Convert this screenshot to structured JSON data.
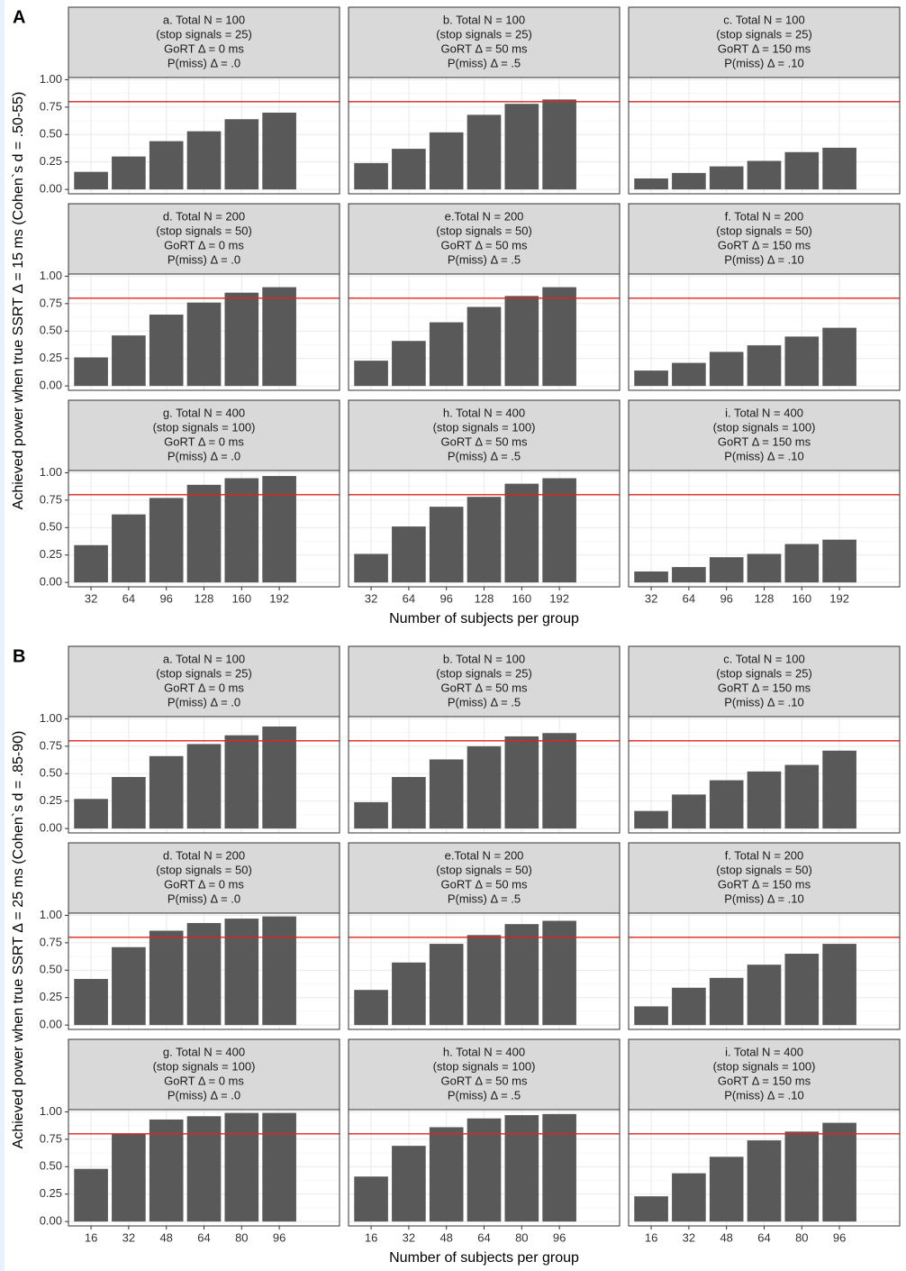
{
  "chart_data": [
    {
      "type": "bar",
      "panel_label": "A",
      "ylabel": "Achieved power when true SSRT  Δ = 15 ms (Cohen`s d = .50-55)",
      "xlabel": "Number of subjects per group",
      "categories": [
        "32",
        "64",
        "96",
        "128",
        "160",
        "192"
      ],
      "ylim": [
        -0.04,
        1.02
      ],
      "yticks": [
        {
          "value": 0,
          "label": "0.00"
        },
        {
          "value": 0.25,
          "label": "0.25"
        },
        {
          "value": 0.5,
          "label": "0.50"
        },
        {
          "value": 0.75,
          "label": "0.75"
        },
        {
          "value": 1,
          "label": "1.00"
        }
      ],
      "hline": 0.8,
      "hline_color": "#e0231c",
      "color": "#595959",
      "grid": true,
      "facets": [
        {
          "title": [
            "a. Total N = 100",
            "(stop signals = 25)",
            "GoRT Δ = 0 ms",
            "P(miss) Δ = .0"
          ],
          "values": [
            0.16,
            0.3,
            0.44,
            0.53,
            0.64,
            0.7
          ]
        },
        {
          "title": [
            "b. Total N = 100",
            "(stop signals = 25)",
            "GoRT Δ = 50 ms",
            "P(miss) Δ = .5"
          ],
          "values": [
            0.24,
            0.37,
            0.52,
            0.68,
            0.78,
            0.82
          ]
        },
        {
          "title": [
            "c. Total N = 100",
            "(stop signals = 25)",
            "GoRT Δ = 150 ms",
            "P(miss) Δ = .10"
          ],
          "values": [
            0.1,
            0.15,
            0.21,
            0.26,
            0.34,
            0.38
          ]
        },
        {
          "title": [
            "d. Total N = 200",
            "(stop signals = 50)",
            "GoRT Δ = 0 ms",
            "P(miss) Δ = .0"
          ],
          "values": [
            0.26,
            0.46,
            0.65,
            0.76,
            0.85,
            0.9
          ]
        },
        {
          "title": [
            "e.Total N = 200",
            "(stop signals = 50)",
            "GoRT Δ = 50 ms",
            "P(miss) Δ = .5"
          ],
          "values": [
            0.23,
            0.41,
            0.58,
            0.72,
            0.82,
            0.9
          ]
        },
        {
          "title": [
            "f. Total N = 200",
            "(stop signals = 50)",
            "GoRT Δ = 150 ms",
            "P(miss) Δ = .10"
          ],
          "values": [
            0.14,
            0.21,
            0.31,
            0.37,
            0.45,
            0.53
          ]
        },
        {
          "title": [
            "g. Total N = 400",
            "(stop signals = 100)",
            "GoRT Δ = 0 ms",
            "P(miss) Δ = .0"
          ],
          "values": [
            0.34,
            0.62,
            0.77,
            0.89,
            0.95,
            0.97
          ]
        },
        {
          "title": [
            "h. Total N = 400",
            "(stop signals = 100)",
            "GoRT Δ = 50 ms",
            "P(miss) Δ = .5"
          ],
          "values": [
            0.26,
            0.51,
            0.69,
            0.78,
            0.9,
            0.95
          ]
        },
        {
          "title": [
            "i. Total N = 400",
            "(stop signals = 100)",
            "GoRT Δ = 150 ms",
            "P(miss) Δ = .10"
          ],
          "values": [
            0.1,
            0.14,
            0.23,
            0.26,
            0.35,
            0.39
          ]
        }
      ]
    },
    {
      "type": "bar",
      "panel_label": "B",
      "ylabel": "Achieved power when true SSRT  Δ = 25 ms (Cohen`s d = .85-90)",
      "xlabel": "Number of subjects per group",
      "categories": [
        "16",
        "32",
        "48",
        "64",
        "80",
        "96"
      ],
      "ylim": [
        -0.04,
        1.02
      ],
      "yticks": [
        {
          "value": 0,
          "label": "0.00"
        },
        {
          "value": 0.25,
          "label": "0.25"
        },
        {
          "value": 0.5,
          "label": "0.50"
        },
        {
          "value": 0.75,
          "label": "0.75"
        },
        {
          "value": 1,
          "label": "1.00"
        }
      ],
      "hline": 0.8,
      "hline_color": "#e0231c",
      "color": "#595959",
      "grid": true,
      "facets": [
        {
          "title": [
            "a. Total N = 100",
            "(stop signals = 25)",
            "GoRT Δ = 0 ms",
            "P(miss) Δ = .0"
          ],
          "values": [
            0.27,
            0.47,
            0.66,
            0.77,
            0.85,
            0.93
          ]
        },
        {
          "title": [
            "b. Total N = 100",
            "(stop signals = 25)",
            "GoRT Δ = 50 ms",
            "P(miss) Δ = .5"
          ],
          "values": [
            0.24,
            0.47,
            0.63,
            0.75,
            0.84,
            0.87
          ]
        },
        {
          "title": [
            "c. Total N = 100",
            "(stop signals = 25)",
            "GoRT Δ = 150 ms",
            "P(miss) Δ = .10"
          ],
          "values": [
            0.16,
            0.31,
            0.44,
            0.52,
            0.58,
            0.71
          ]
        },
        {
          "title": [
            "d. Total N = 200",
            "(stop signals = 50)",
            "GoRT Δ = 0 ms",
            "P(miss) Δ = .0"
          ],
          "values": [
            0.42,
            0.71,
            0.86,
            0.93,
            0.97,
            0.99
          ]
        },
        {
          "title": [
            "e.Total N = 200",
            "(stop signals = 50)",
            "GoRT Δ = 50 ms",
            "P(miss) Δ = .5"
          ],
          "values": [
            0.32,
            0.57,
            0.74,
            0.82,
            0.92,
            0.95
          ]
        },
        {
          "title": [
            "f. Total N = 200",
            "(stop signals = 50)",
            "GoRT Δ = 150 ms",
            "P(miss) Δ = .10"
          ],
          "values": [
            0.17,
            0.34,
            0.43,
            0.55,
            0.65,
            0.74
          ]
        },
        {
          "title": [
            "g. Total N = 400",
            "(stop signals = 100)",
            "GoRT Δ = 0 ms",
            "P(miss) Δ = .0"
          ],
          "values": [
            0.48,
            0.8,
            0.93,
            0.96,
            0.99,
            0.99
          ]
        },
        {
          "title": [
            "h. Total N = 400",
            "(stop signals = 100)",
            "GoRT Δ = 50 ms",
            "P(miss) Δ = .5"
          ],
          "values": [
            0.41,
            0.69,
            0.86,
            0.94,
            0.97,
            0.98
          ]
        },
        {
          "title": [
            "i. Total N = 400",
            "(stop signals = 100)",
            "GoRT Δ = 150 ms",
            "P(miss) Δ = .10"
          ],
          "values": [
            0.23,
            0.44,
            0.59,
            0.74,
            0.82,
            0.9
          ]
        }
      ]
    }
  ]
}
